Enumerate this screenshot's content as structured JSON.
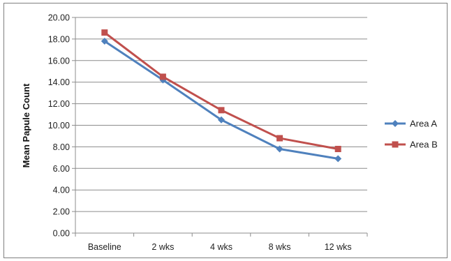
{
  "chart_data": {
    "type": "line",
    "categories": [
      "Baseline",
      "2 wks",
      "4 wks",
      "8 wks",
      "12 wks"
    ],
    "series": [
      {
        "name": "Area A",
        "values": [
          17.8,
          14.2,
          10.5,
          7.8,
          6.9
        ],
        "color": "#4f81bd",
        "marker": "diamond"
      },
      {
        "name": "Area B",
        "values": [
          18.6,
          14.5,
          11.4,
          8.8,
          7.8
        ],
        "color": "#c0504d",
        "marker": "square"
      }
    ],
    "title": "",
    "xlabel": "",
    "ylabel": "Mean Papule Count",
    "ylim": [
      0,
      20
    ],
    "ytick_step": 2,
    "ytick_labels": [
      "0.00",
      "2.00",
      "4.00",
      "6.00",
      "8.00",
      "10.00",
      "12.00",
      "14.00",
      "16.00",
      "18.00",
      "20.00"
    ],
    "grid": "horizontal",
    "legend_position": "right"
  }
}
